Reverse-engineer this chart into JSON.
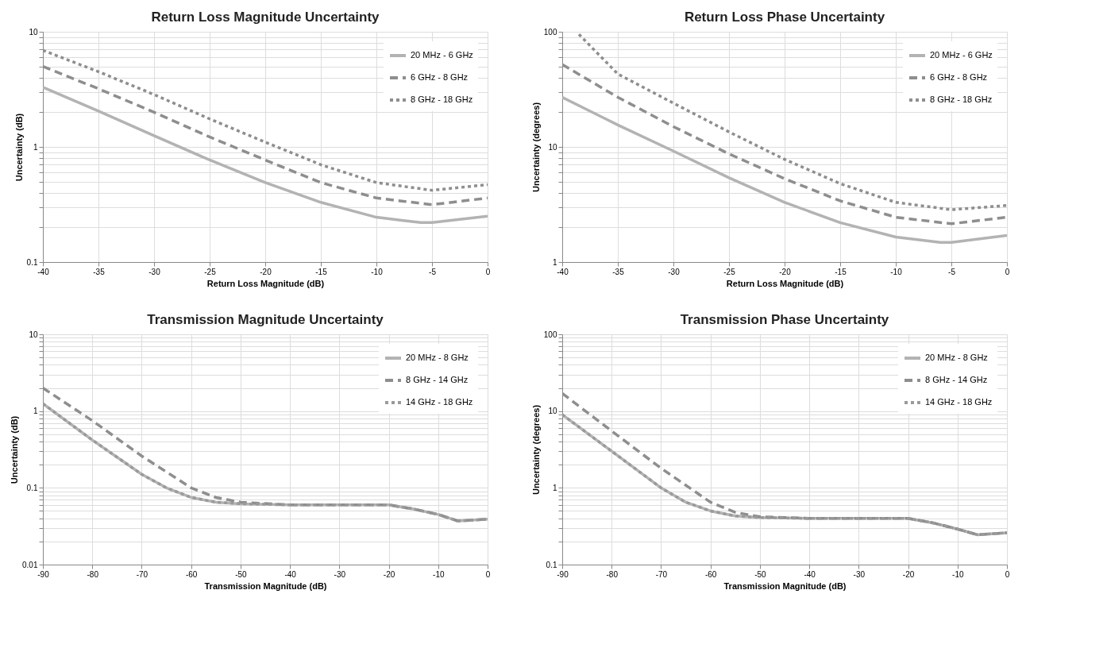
{
  "chart_data": [
    {
      "type": "line",
      "title": "Return Loss Magnitude Uncertainty",
      "xlabel": "Return Loss Magnitude (dB)",
      "ylabel": "Uncertainty (dB)",
      "log": "y",
      "grid": true,
      "legend": "top right",
      "xlim": [
        -40,
        0
      ],
      "xticks": [
        -40,
        -35,
        -30,
        -25,
        -20,
        -15,
        -10,
        -5,
        0
      ],
      "ylim": [
        0.1,
        10
      ],
      "yticks": [
        0.1,
        {
          "value": 0.2,
          "label": null
        },
        {
          "value": 0.3,
          "label": null
        },
        {
          "value": 0.4,
          "label": null
        },
        {
          "value": 0.5,
          "label": null
        },
        {
          "value": 0.6,
          "label": null
        },
        {
          "value": 0.7,
          "label": null
        },
        {
          "value": 0.8,
          "label": null
        },
        {
          "value": 0.9,
          "label": null
        },
        1,
        {
          "value": 2,
          "label": null
        },
        {
          "value": 3,
          "label": null
        },
        {
          "value": 4,
          "label": null
        },
        {
          "value": 5,
          "label": null
        },
        {
          "value": 6,
          "label": null
        },
        {
          "value": 7,
          "label": null
        },
        {
          "value": 8,
          "label": null
        },
        {
          "value": 9,
          "label": null
        },
        10
      ],
      "series": [
        {
          "name": "20 MHz - 6 GHz",
          "color": "#b3b3b3",
          "line_style": "solid",
          "x": [
            -40,
            -35,
            -30,
            -25,
            -20,
            -15,
            -10,
            -6,
            -5,
            0
          ],
          "values": [
            3.3,
            2.05,
            1.25,
            0.77,
            0.49,
            0.33,
            0.245,
            0.22,
            0.22,
            0.25
          ]
        },
        {
          "name": "6 GHz - 8 GHz",
          "color": "#8e8e8e",
          "line_style": "dashed",
          "x": [
            -40,
            -35,
            -30,
            -25,
            -20,
            -15,
            -10,
            -5,
            0
          ],
          "values": [
            5.0,
            3.2,
            2.0,
            1.22,
            0.77,
            0.49,
            0.36,
            0.315,
            0.36
          ]
        },
        {
          "name": "8 GHz - 18 GHz",
          "color": "#8e8e8e",
          "line_style": "dotted",
          "x": [
            -40,
            -35,
            -30,
            -25,
            -20,
            -15,
            -10,
            -5,
            0
          ],
          "values": [
            6.9,
            4.5,
            2.85,
            1.75,
            1.1,
            0.7,
            0.49,
            0.42,
            0.47
          ]
        }
      ]
    },
    {
      "type": "line",
      "title": "Return Loss Phase Uncertainty",
      "xlabel": "Return Loss Magnitude (dB)",
      "ylabel": "Uncertainty (degrees)",
      "log": "y",
      "grid": true,
      "legend": "top right",
      "xlim": [
        -40,
        0
      ],
      "xticks": [
        -40,
        -35,
        -30,
        -25,
        -20,
        -15,
        -10,
        -5,
        0
      ],
      "ylim": [
        1,
        100
      ],
      "yticks": [
        1,
        {
          "value": 2,
          "label": null
        },
        {
          "value": 3,
          "label": null
        },
        {
          "value": 4,
          "label": null
        },
        {
          "value": 5,
          "label": null
        },
        {
          "value": 6,
          "label": null
        },
        {
          "value": 7,
          "label": null
        },
        {
          "value": 8,
          "label": null
        },
        {
          "value": 9,
          "label": null
        },
        10,
        {
          "value": 20,
          "label": null
        },
        {
          "value": 30,
          "label": null
        },
        {
          "value": 40,
          "label": null
        },
        {
          "value": 50,
          "label": null
        },
        {
          "value": 60,
          "label": null
        },
        {
          "value": 70,
          "label": null
        },
        {
          "value": 80,
          "label": null
        },
        {
          "value": 90,
          "label": null
        },
        100
      ],
      "series": [
        {
          "name": "20 MHz - 6 GHz",
          "color": "#b3b3b3",
          "line_style": "solid",
          "x": [
            -40,
            -35,
            -30,
            -25,
            -20,
            -15,
            -10,
            -6,
            -5,
            0
          ],
          "values": [
            27,
            15.5,
            9.2,
            5.4,
            3.3,
            2.2,
            1.65,
            1.48,
            1.48,
            1.7
          ]
        },
        {
          "name": "6 GHz - 8 GHz",
          "color": "#8e8e8e",
          "line_style": "dashed",
          "x": [
            -40,
            -35,
            -30,
            -25,
            -20,
            -15,
            -10,
            -5,
            0
          ],
          "values": [
            52,
            27,
            15,
            8.7,
            5.3,
            3.4,
            2.45,
            2.15,
            2.45
          ]
        },
        {
          "name": "8 GHz - 18 GHz",
          "color": "#8e8e8e",
          "line_style": "dotted",
          "x": [
            -38.5,
            -35,
            -30,
            -25,
            -20,
            -15,
            -10,
            -5,
            0
          ],
          "values": [
            95,
            43,
            24,
            13.5,
            7.8,
            4.8,
            3.3,
            2.85,
            3.1
          ]
        }
      ]
    },
    {
      "type": "line",
      "title": "Transmission Magnitude Uncertainty",
      "xlabel": "Transmission Magnitude (dB)",
      "ylabel": "Uncertainty (dB)",
      "log": "y",
      "grid": true,
      "legend": "top right",
      "xlim": [
        -90,
        0
      ],
      "xticks": [
        -90,
        -80,
        -70,
        -60,
        -50,
        -40,
        -30,
        -20,
        -10,
        0
      ],
      "ylim": [
        0.01,
        10
      ],
      "yticks": [
        0.01,
        {
          "value": 0.02,
          "label": null
        },
        {
          "value": 0.03,
          "label": null
        },
        {
          "value": 0.04,
          "label": null
        },
        {
          "value": 0.05,
          "label": null
        },
        {
          "value": 0.06,
          "label": null
        },
        {
          "value": 0.07,
          "label": null
        },
        {
          "value": 0.08,
          "label": null
        },
        {
          "value": 0.09,
          "label": null
        },
        0.1,
        {
          "value": 0.2,
          "label": null
        },
        {
          "value": 0.3,
          "label": null
        },
        {
          "value": 0.4,
          "label": null
        },
        {
          "value": 0.5,
          "label": null
        },
        {
          "value": 0.6,
          "label": null
        },
        {
          "value": 0.7,
          "label": null
        },
        {
          "value": 0.8,
          "label": null
        },
        {
          "value": 0.9,
          "label": null
        },
        1,
        {
          "value": 2,
          "label": null
        },
        {
          "value": 3,
          "label": null
        },
        {
          "value": 4,
          "label": null
        },
        {
          "value": 5,
          "label": null
        },
        {
          "value": 6,
          "label": null
        },
        {
          "value": 7,
          "label": null
        },
        {
          "value": 8,
          "label": null
        },
        {
          "value": 9,
          "label": null
        },
        10
      ],
      "series": [
        {
          "name": "20 MHz -  8 GHz",
          "color": "#b3b3b3",
          "line_style": "solid",
          "x": [
            -90,
            -80,
            -70,
            -65,
            -60,
            -55,
            -50,
            -40,
            -30,
            -20,
            -15,
            -10,
            -6,
            0
          ],
          "values": [
            1.25,
            0.42,
            0.15,
            0.1,
            0.075,
            0.065,
            0.062,
            0.06,
            0.06,
            0.06,
            0.053,
            0.045,
            0.037,
            0.039
          ]
        },
        {
          "name": "8 GHz - 14 GHz",
          "color": "#8e8e8e",
          "line_style": "dashed",
          "x": [
            -90,
            -80,
            -70,
            -60,
            -55,
            -50,
            -40,
            -30,
            -20,
            -15,
            -10,
            -6,
            0
          ],
          "values": [
            2.0,
            0.75,
            0.26,
            0.1,
            0.075,
            0.065,
            0.06,
            0.06,
            0.06,
            0.053,
            0.045,
            0.037,
            0.039
          ]
        },
        {
          "name": "14 GHz - 18 GHz",
          "color": "#9a9a9a",
          "line_style": "dotted",
          "x": [
            -90,
            -80,
            -70,
            -65,
            -60,
            -55,
            -50,
            -40,
            -30,
            -20,
            -15,
            -10,
            -6,
            0
          ],
          "values": [
            1.25,
            0.42,
            0.15,
            0.1,
            0.075,
            0.065,
            0.062,
            0.06,
            0.06,
            0.06,
            0.053,
            0.045,
            0.037,
            0.039
          ]
        }
      ]
    },
    {
      "type": "line",
      "title": "Transmission Phase Uncertainty",
      "xlabel": "Transmission Magnitude (dB)",
      "ylabel": "Uncertainty (degrees)",
      "log": "y",
      "grid": true,
      "legend": "top right",
      "xlim": [
        -90,
        0
      ],
      "xticks": [
        -90,
        -80,
        -70,
        -60,
        -50,
        -40,
        -30,
        -20,
        -10,
        0
      ],
      "ylim": [
        0.1,
        100
      ],
      "yticks": [
        0.1,
        {
          "value": 0.2,
          "label": null
        },
        {
          "value": 0.3,
          "label": null
        },
        {
          "value": 0.4,
          "label": null
        },
        {
          "value": 0.5,
          "label": null
        },
        {
          "value": 0.6,
          "label": null
        },
        {
          "value": 0.7,
          "label": null
        },
        {
          "value": 0.8,
          "label": null
        },
        {
          "value": 0.9,
          "label": null
        },
        1,
        {
          "value": 2,
          "label": null
        },
        {
          "value": 3,
          "label": null
        },
        {
          "value": 4,
          "label": null
        },
        {
          "value": 5,
          "label": null
        },
        {
          "value": 6,
          "label": null
        },
        {
          "value": 7,
          "label": null
        },
        {
          "value": 8,
          "label": null
        },
        {
          "value": 9,
          "label": null
        },
        10,
        {
          "value": 20,
          "label": null
        },
        {
          "value": 30,
          "label": null
        },
        {
          "value": 40,
          "label": null
        },
        {
          "value": 50,
          "label": null
        },
        {
          "value": 60,
          "label": null
        },
        {
          "value": 70,
          "label": null
        },
        {
          "value": 80,
          "label": null
        },
        {
          "value": 90,
          "label": null
        },
        100
      ],
      "series": [
        {
          "name": "20 MHz -  8 GHz",
          "color": "#b3b3b3",
          "line_style": "solid",
          "x": [
            -90,
            -80,
            -70,
            -65,
            -60,
            -55,
            -50,
            -40,
            -30,
            -20,
            -15,
            -10,
            -6,
            0
          ],
          "values": [
            9,
            3,
            1.0,
            0.65,
            0.5,
            0.43,
            0.41,
            0.4,
            0.4,
            0.4,
            0.35,
            0.29,
            0.245,
            0.26
          ]
        },
        {
          "name": "8 GHz - 14 GHz",
          "color": "#8e8e8e",
          "line_style": "dashed",
          "x": [
            -90,
            -80,
            -70,
            -60,
            -55,
            -50,
            -40,
            -30,
            -20,
            -15,
            -10,
            -6,
            0
          ],
          "values": [
            17,
            5.5,
            1.8,
            0.65,
            0.48,
            0.42,
            0.4,
            0.4,
            0.4,
            0.35,
            0.29,
            0.245,
            0.26
          ]
        },
        {
          "name": "14 GHz - 18 GHz",
          "color": "#9a9a9a",
          "line_style": "dotted",
          "x": [
            -90,
            -80,
            -70,
            -65,
            -60,
            -55,
            -50,
            -40,
            -30,
            -20,
            -15,
            -10,
            -6,
            0
          ],
          "values": [
            9,
            3,
            1.0,
            0.65,
            0.5,
            0.43,
            0.41,
            0.4,
            0.4,
            0.4,
            0.35,
            0.29,
            0.245,
            0.26
          ]
        }
      ]
    }
  ]
}
